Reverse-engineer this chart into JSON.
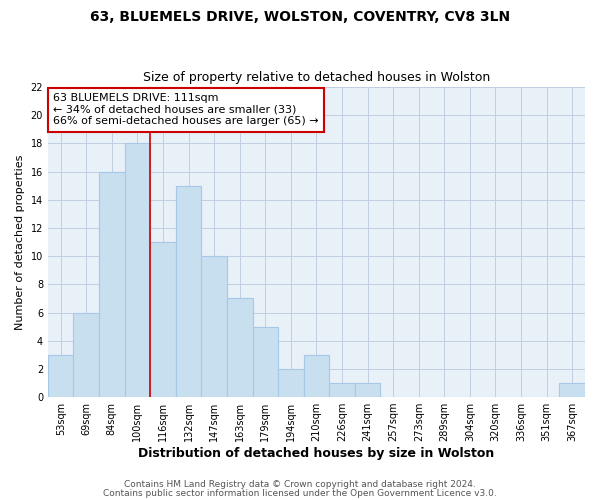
{
  "title": "63, BLUEMELS DRIVE, WOLSTON, COVENTRY, CV8 3LN",
  "subtitle": "Size of property relative to detached houses in Wolston",
  "xlabel": "Distribution of detached houses by size in Wolston",
  "ylabel": "Number of detached properties",
  "bar_labels": [
    "53sqm",
    "69sqm",
    "84sqm",
    "100sqm",
    "116sqm",
    "132sqm",
    "147sqm",
    "163sqm",
    "179sqm",
    "194sqm",
    "210sqm",
    "226sqm",
    "241sqm",
    "257sqm",
    "273sqm",
    "289sqm",
    "304sqm",
    "320sqm",
    "336sqm",
    "351sqm",
    "367sqm"
  ],
  "bar_heights": [
    3,
    6,
    16,
    18,
    11,
    15,
    10,
    7,
    5,
    2,
    3,
    1,
    1,
    0,
    0,
    0,
    0,
    0,
    0,
    0,
    1
  ],
  "bar_color": "#c8dff0",
  "bar_edge_color": "#a8c8e8",
  "vline_color": "#cc0000",
  "vline_index": 3.5,
  "annotation_text": "63 BLUEMELS DRIVE: 111sqm\n← 34% of detached houses are smaller (33)\n66% of semi-detached houses are larger (65) →",
  "annotation_box_edgecolor": "#cc0000",
  "annotation_box_facecolor": "#ffffff",
  "ylim": [
    0,
    22
  ],
  "yticks": [
    0,
    2,
    4,
    6,
    8,
    10,
    12,
    14,
    16,
    18,
    20,
    22
  ],
  "bg_color": "#e8f0f8",
  "grid_color": "#c0d0e0",
  "footer1": "Contains HM Land Registry data © Crown copyright and database right 2024.",
  "footer2": "Contains public sector information licensed under the Open Government Licence v3.0.",
  "title_fontsize": 10,
  "subtitle_fontsize": 9,
  "xlabel_fontsize": 9,
  "ylabel_fontsize": 8,
  "tick_fontsize": 7,
  "annotation_fontsize": 8,
  "footer_fontsize": 6.5
}
